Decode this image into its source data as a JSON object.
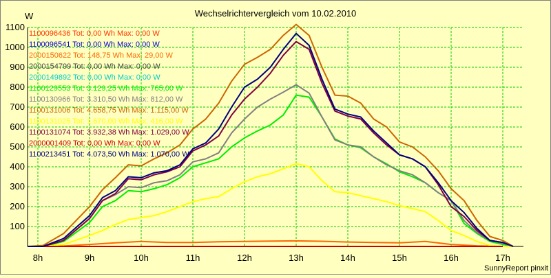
{
  "chart_data": {
    "type": "line",
    "title": "Wechselrichtervergleich vom 10.02.2010",
    "ylabel": "W",
    "xlabel": "",
    "footer": "SunnyReport pinxit",
    "ylim": [
      0,
      1100
    ],
    "yticks": [
      100,
      200,
      300,
      400,
      500,
      600,
      700,
      800,
      900,
      1000,
      1100
    ],
    "xlim": [
      7.8,
      17.4
    ],
    "xticks": [
      8,
      9,
      10,
      11,
      12,
      13,
      14,
      15,
      16,
      17
    ],
    "xtick_labels": [
      "8h",
      "9h",
      "10h",
      "11h",
      "12h",
      "13h",
      "14h",
      "15h",
      "16h",
      "17h"
    ],
    "grid": true,
    "legend_placement": "top-left",
    "background": "#FFFFC0",
    "grid_color": "#00CC00",
    "series": [
      {
        "name": "1100096436 Tot: 0,00 Wh Max: 0,00 W",
        "color": "#FF3300",
        "x": [
          8.0,
          17.0
        ],
        "y": [
          0,
          0
        ]
      },
      {
        "name": "1100096541 Tot: 0,00 Wh Max: 0,00 W",
        "color": "#0000CC",
        "x": [
          8.0,
          17.0
        ],
        "y": [
          0,
          0
        ]
      },
      {
        "name": "2000150622 Tot: 148,75 Wh Max: 29,00 W",
        "color": "#FF6600",
        "x": [
          8.0,
          8.5,
          9.0,
          9.5,
          10.0,
          10.5,
          11.0,
          11.5,
          12.0,
          12.5,
          13.0,
          13.5,
          14.0,
          14.5,
          15.0,
          15.5,
          16.0,
          16.5,
          17.0
        ],
        "y": [
          0,
          2,
          10,
          18,
          25,
          20,
          20,
          23,
          25,
          27,
          28,
          26,
          22,
          20,
          18,
          25,
          10,
          3,
          0
        ]
      },
      {
        "name": "2000154799 Tot: 0,00 Wh Max: 0,00 W",
        "color": "#444444",
        "x": [
          8.0,
          17.0
        ],
        "y": [
          0,
          0
        ]
      },
      {
        "name": "2000149892 Tot: 0,00 Wh Max: 0,00 W",
        "color": "#00CCCC",
        "x": [
          8.0,
          17.0
        ],
        "y": [
          0,
          0
        ]
      },
      {
        "name": "1100129553 Tot: 3.129,25 Wh Max: 765,00 W",
        "color": "#00EE00",
        "x": [
          7.8,
          8.1,
          8.5,
          9.0,
          9.25,
          9.5,
          9.75,
          10.0,
          10.25,
          10.5,
          10.75,
          11.0,
          11.25,
          11.5,
          11.75,
          12.0,
          12.25,
          12.5,
          12.75,
          13.0,
          13.25,
          13.5,
          13.75,
          14.0,
          14.25,
          14.5,
          14.75,
          15.0,
          15.25,
          15.5,
          15.75,
          16.0,
          16.25,
          16.5,
          16.75,
          17.0,
          17.2
        ],
        "y": [
          0,
          0,
          25,
          120,
          200,
          230,
          280,
          275,
          290,
          310,
          345,
          400,
          420,
          440,
          500,
          545,
          580,
          610,
          660,
          760,
          750,
          650,
          540,
          510,
          495,
          450,
          415,
          375,
          350,
          320,
          270,
          230,
          115,
          65,
          25,
          10,
          0
        ]
      },
      {
        "name": "1100130966 Tot: 3.310,50 Wh Max: 812,00 W",
        "color": "#808080",
        "x": [
          7.8,
          8.1,
          8.5,
          9.0,
          9.25,
          9.5,
          9.75,
          10.0,
          10.25,
          10.5,
          10.75,
          11.0,
          11.25,
          11.5,
          11.75,
          12.0,
          12.25,
          12.5,
          12.75,
          13.0,
          13.25,
          13.5,
          13.75,
          14.0,
          14.25,
          14.5,
          14.75,
          15.0,
          15.25,
          15.5,
          15.75,
          16.0,
          16.25,
          16.5,
          16.75,
          17.0,
          17.2
        ],
        "y": [
          0,
          0,
          30,
          140,
          230,
          260,
          300,
          295,
          320,
          330,
          360,
          425,
          440,
          470,
          570,
          640,
          700,
          740,
          775,
          812,
          770,
          650,
          535,
          510,
          500,
          450,
          410,
          380,
          360,
          320,
          270,
          230,
          130,
          70,
          30,
          15,
          0
        ]
      },
      {
        "name": "1100131006 Tot: 4.658,75 Wh Max: 1.115,00 W",
        "color": "#CC6600",
        "x": [
          7.8,
          8.1,
          8.5,
          9.0,
          9.25,
          9.5,
          9.75,
          10.0,
          10.25,
          10.5,
          10.75,
          11.0,
          11.25,
          11.5,
          11.75,
          12.0,
          12.25,
          12.5,
          12.75,
          13.0,
          13.25,
          13.5,
          13.75,
          14.0,
          14.25,
          14.5,
          14.75,
          15.0,
          15.25,
          15.5,
          15.75,
          16.0,
          16.25,
          16.5,
          16.75,
          17.0,
          17.2
        ],
        "y": [
          0,
          5,
          65,
          200,
          285,
          345,
          410,
          405,
          440,
          470,
          510,
          590,
          640,
          720,
          830,
          915,
          950,
          990,
          1060,
          1115,
          1060,
          900,
          760,
          755,
          720,
          640,
          600,
          525,
          500,
          450,
          380,
          290,
          230,
          130,
          50,
          30,
          0
        ]
      },
      {
        "name": "1100131025 Tot: 1.670,00 Wh Max: 416,00 W",
        "color": "#FFFF00",
        "x": [
          7.8,
          8.1,
          8.5,
          9.0,
          9.25,
          9.5,
          9.75,
          10.0,
          10.25,
          10.5,
          10.75,
          11.0,
          11.25,
          11.5,
          11.75,
          12.0,
          12.25,
          12.5,
          12.75,
          13.0,
          13.25,
          13.5,
          13.75,
          14.0,
          14.25,
          14.5,
          14.75,
          15.0,
          15.25,
          15.5,
          15.75,
          16.0,
          16.25,
          16.5,
          16.75,
          17.0,
          17.2
        ],
        "y": [
          0,
          0,
          10,
          55,
          80,
          110,
          135,
          145,
          155,
          175,
          200,
          225,
          240,
          250,
          290,
          325,
          350,
          365,
          390,
          416,
          400,
          330,
          275,
          270,
          255,
          240,
          225,
          205,
          190,
          175,
          130,
          80,
          55,
          25,
          5,
          0,
          0
        ]
      },
      {
        "name": "1100131074 Tot: 3.932,38 Wh Max: 1.029,00 W",
        "color": "#800040",
        "x": [
          7.8,
          8.1,
          8.5,
          9.0,
          9.25,
          9.5,
          9.75,
          10.0,
          10.25,
          10.5,
          10.75,
          11.0,
          11.25,
          11.5,
          11.75,
          12.0,
          12.25,
          12.5,
          12.75,
          13.0,
          13.25,
          13.5,
          13.75,
          14.0,
          14.25,
          14.5,
          14.75,
          15.0,
          15.25,
          15.5,
          15.75,
          16.0,
          16.25,
          16.5,
          16.75,
          17.0,
          17.2
        ],
        "y": [
          0,
          0,
          30,
          140,
          230,
          265,
          340,
          335,
          360,
          375,
          400,
          480,
          510,
          555,
          660,
          740,
          800,
          870,
          960,
          1029,
          990,
          820,
          680,
          655,
          640,
          570,
          510,
          460,
          440,
          400,
          310,
          200,
          150,
          80,
          30,
          20,
          0
        ]
      },
      {
        "name": "2000001409 Tot: 0,00 Wh Max: 0,00 W",
        "color": "#CC0000",
        "x": [
          8.0,
          17.0
        ],
        "y": [
          0,
          0
        ]
      },
      {
        "name": "1100213451 Tot: 4.073,50 Wh Max: 1.070,00 W",
        "color": "#000080",
        "x": [
          7.8,
          8.1,
          8.5,
          9.0,
          9.25,
          9.5,
          9.75,
          10.0,
          10.25,
          10.5,
          10.75,
          11.0,
          11.25,
          11.5,
          11.75,
          12.0,
          12.25,
          12.5,
          12.75,
          13.0,
          13.25,
          13.5,
          13.75,
          14.0,
          14.25,
          14.5,
          14.75,
          15.0,
          15.25,
          15.5,
          15.75,
          16.0,
          16.25,
          16.5,
          16.75,
          17.0,
          17.2
        ],
        "y": [
          0,
          0,
          40,
          155,
          245,
          280,
          350,
          345,
          370,
          380,
          410,
          490,
          520,
          590,
          700,
          800,
          840,
          900,
          990,
          1070,
          1010,
          840,
          690,
          665,
          650,
          580,
          520,
          460,
          440,
          400,
          320,
          230,
          170,
          90,
          30,
          20,
          0
        ]
      }
    ]
  }
}
